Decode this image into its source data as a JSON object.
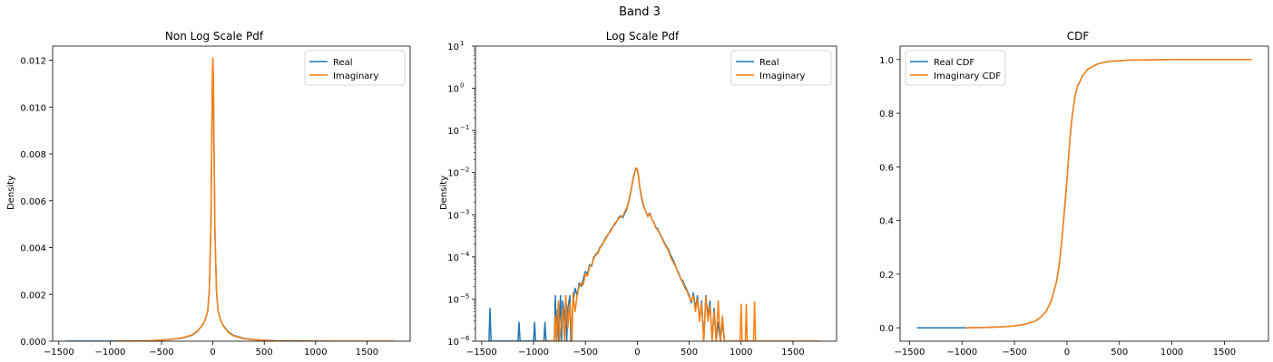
{
  "figure": {
    "suptitle": "Band 3"
  },
  "colors": {
    "real": "#1f77b4",
    "imaginary": "#ff7f0e"
  },
  "chart_data": [
    {
      "type": "line",
      "title": "Non Log Scale Pdf",
      "xlabel": "",
      "ylabel": "Density",
      "xlim": [
        -1560,
        1920
      ],
      "ylim": [
        0,
        0.0126
      ],
      "yscale": "linear",
      "xticks": [
        -1500,
        -1000,
        -500,
        0,
        500,
        1000,
        1500
      ],
      "yticks": [
        0.0,
        0.002,
        0.004,
        0.006,
        0.008,
        0.01,
        0.012
      ],
      "yticklabels": [
        "0.000",
        "0.002",
        "0.004",
        "0.006",
        "0.008",
        "0.010",
        "0.012"
      ],
      "grid": false,
      "legend": {
        "position": "upper right",
        "entries": [
          "Real",
          "Imaginary"
        ]
      },
      "series": [
        {
          "name": "Real",
          "color": "#1f77b4",
          "x": [
            -1430,
            -1000,
            -600,
            -400,
            -300,
            -200,
            -150,
            -100,
            -75,
            -50,
            -35,
            -20,
            -10,
            -5,
            0,
            5,
            10,
            20,
            35,
            50,
            75,
            100,
            150,
            200,
            300,
            400,
            600,
            1000,
            1140
          ],
          "y": [
            0,
            0,
            2e-05,
            8e-05,
            0.00013,
            0.00026,
            0.00042,
            0.0007,
            0.0009,
            0.0013,
            0.0022,
            0.0048,
            0.0088,
            0.0112,
            0.0119,
            0.011,
            0.0085,
            0.0046,
            0.0021,
            0.0013,
            0.0009,
            0.00068,
            0.0004,
            0.00025,
            0.00012,
            7e-05,
            2e-05,
            0,
            0
          ]
        },
        {
          "name": "Imaginary",
          "color": "#ff7f0e",
          "x": [
            -960,
            -600,
            -400,
            -300,
            -200,
            -150,
            -100,
            -75,
            -50,
            -35,
            -20,
            -10,
            -5,
            0,
            5,
            10,
            20,
            35,
            50,
            75,
            100,
            150,
            200,
            300,
            400,
            600,
            1000,
            1400,
            1760
          ],
          "y": [
            0,
            2e-05,
            8e-05,
            0.00014,
            0.00028,
            0.00044,
            0.00068,
            0.0009,
            0.0013,
            0.0022,
            0.005,
            0.009,
            0.0115,
            0.0121,
            0.0112,
            0.0087,
            0.0047,
            0.0022,
            0.0013,
            0.0009,
            0.00066,
            0.00038,
            0.00023,
            0.00011,
            6e-05,
            1e-05,
            0,
            0,
            0
          ]
        }
      ]
    },
    {
      "type": "line",
      "title": "Log Scale Pdf",
      "xlabel": "",
      "ylabel": "Density",
      "xlim": [
        -1560,
        1920
      ],
      "ylim": [
        1e-06,
        10
      ],
      "yscale": "log",
      "xticks": [
        -1500,
        -1000,
        -500,
        0,
        500,
        1000,
        1500
      ],
      "yticks": [
        1e-06,
        1e-05,
        0.0001,
        0.001,
        0.01,
        0.1,
        1,
        10
      ],
      "yticklabels": [
        "10",
        "10",
        "10",
        "10",
        "10",
        "10",
        "10",
        "10"
      ],
      "yticksup": [
        "−6",
        "−5",
        "−4",
        "−3",
        "−2",
        "−1",
        "0",
        "1"
      ],
      "grid": false,
      "legend": {
        "position": "upper right",
        "entries": [
          "Real",
          "Imaginary"
        ]
      },
      "series": [
        {
          "name": "Real",
          "color": "#1f77b4",
          "x": [
            -1430,
            -1420,
            -1410,
            -1150,
            -1140,
            -1130,
            -1000,
            -990,
            -980,
            -900,
            -890,
            -880,
            -800,
            -790,
            -780,
            -770,
            -760,
            -740,
            -730,
            -720,
            -700,
            -690,
            -680,
            -670,
            -650,
            -640,
            -620,
            -600,
            -580,
            -560,
            -540,
            -520,
            -500,
            -480,
            -460,
            -440,
            -420,
            -400,
            -380,
            -360,
            -340,
            -320,
            -300,
            -280,
            -260,
            -240,
            -220,
            -200,
            -180,
            -160,
            -140,
            -120,
            -100,
            -80,
            -60,
            -40,
            -20,
            -10,
            0,
            10,
            20,
            40,
            60,
            80,
            100,
            120,
            140,
            160,
            180,
            200,
            220,
            240,
            260,
            280,
            300,
            320,
            340,
            360,
            380,
            400,
            420,
            440,
            460,
            480,
            500,
            520,
            540,
            560,
            580,
            600,
            620,
            640,
            660,
            680,
            700,
            720,
            740,
            760,
            780,
            800,
            820,
            840
          ],
          "y": [
            1e-06,
            6e-06,
            1e-06,
            1e-06,
            2.8e-06,
            1e-06,
            1e-06,
            2.8e-06,
            1e-06,
            1e-06,
            2.8e-06,
            1e-06,
            1e-06,
            1.2e-05,
            1e-06,
            5.5e-06,
            1e-06,
            1.2e-05,
            1e-06,
            9e-06,
            3e-06,
            1.2e-05,
            1e-06,
            6e-06,
            1.2e-05,
            1e-06,
            8e-06,
            1.8e-05,
            1.2e-05,
            2.4e-05,
            2e-05,
            3e-05,
            4.5e-05,
            4e-05,
            6.5e-05,
            6e-05,
            0.0001,
            0.00011,
            0.00013,
            0.00017,
            0.00019,
            0.00024,
            0.0003,
            0.00034,
            0.00042,
            0.0005,
            0.00058,
            0.00068,
            0.00085,
            0.00095,
            0.00085,
            0.0011,
            0.0014,
            0.0022,
            0.0038,
            0.007,
            0.011,
            0.0125,
            0.0115,
            0.0085,
            0.005,
            0.0025,
            0.0016,
            0.0012,
            0.00095,
            0.0011,
            0.0008,
            0.00065,
            0.0005,
            0.00045,
            0.00034,
            0.00028,
            0.00022,
            0.00018,
            0.00015,
            0.00011,
            9e-05,
            7e-05,
            5e-05,
            4e-05,
            3e-05,
            2.7e-05,
            2e-05,
            1.6e-05,
            1.2e-05,
            8e-06,
            1.4e-05,
            6e-06,
            1.2e-05,
            3e-06,
            9e-06,
            1e-06,
            1.2e-05,
            4e-06,
            9e-06,
            1e-06,
            6e-06,
            1e-06,
            2.8e-06,
            1e-06,
            2.8e-06,
            1e-06
          ]
        },
        {
          "name": "Imaginary",
          "color": "#ff7f0e",
          "x": [
            -960,
            -800,
            -790,
            -780,
            -760,
            -750,
            -720,
            -700,
            -690,
            -670,
            -650,
            -630,
            -620,
            -600,
            -580,
            -560,
            -540,
            -520,
            -500,
            -480,
            -460,
            -440,
            -420,
            -400,
            -380,
            -360,
            -340,
            -320,
            -300,
            -280,
            -260,
            -240,
            -220,
            -200,
            -180,
            -160,
            -140,
            -120,
            -100,
            -80,
            -60,
            -40,
            -20,
            -10,
            0,
            10,
            20,
            40,
            60,
            80,
            100,
            120,
            140,
            160,
            180,
            200,
            220,
            240,
            260,
            280,
            300,
            320,
            340,
            360,
            380,
            400,
            420,
            440,
            460,
            480,
            500,
            520,
            540,
            560,
            580,
            600,
            620,
            640,
            660,
            680,
            700,
            720,
            740,
            760,
            780,
            800,
            820,
            840,
            900,
            990,
            1000,
            1010,
            1040,
            1050,
            1060,
            1120,
            1130,
            1140,
            1760
          ],
          "y": [
            1e-06,
            1e-06,
            4e-06,
            1e-06,
            9e-06,
            1e-06,
            6e-06,
            1e-06,
            1.2e-05,
            2e-06,
            8e-06,
            1e-06,
            1.4e-05,
            5e-06,
            1.2e-05,
            2e-05,
            2.4e-05,
            2.2e-05,
            4e-05,
            3.5e-05,
            6e-05,
            6.5e-05,
            9e-05,
            0.00012,
            0.00012,
            0.00016,
            0.0002,
            0.00023,
            0.00028,
            0.00035,
            0.0004,
            0.00048,
            0.00062,
            0.0007,
            0.0008,
            0.0009,
            0.00092,
            0.0012,
            0.0015,
            0.0023,
            0.004,
            0.0075,
            0.0115,
            0.013,
            0.012,
            0.009,
            0.0052,
            0.0027,
            0.0017,
            0.0012,
            0.0009,
            0.00105,
            0.0008,
            0.00063,
            0.00048,
            0.00043,
            0.00033,
            0.00027,
            0.00021,
            0.00017,
            0.00014,
            0.0001,
            8e-05,
            6.5e-05,
            5e-05,
            3.8e-05,
            3e-05,
            2.4e-05,
            1.8e-05,
            1.5e-05,
            1.1e-05,
            9e-06,
            1.2e-05,
            5e-06,
            1e-05,
            3e-06,
            8e-06,
            1e-06,
            1.1e-05,
            3e-06,
            7e-06,
            1e-06,
            5e-06,
            1e-06,
            9e-06,
            1e-06,
            4e-06,
            1e-06,
            1e-06,
            1e-06,
            7.5e-06,
            1e-06,
            1e-06,
            7.5e-06,
            1e-06,
            1e-06,
            8.5e-06,
            1e-06,
            1e-06
          ]
        }
      ]
    },
    {
      "type": "line",
      "title": "CDF",
      "xlabel": "",
      "ylabel": "",
      "xlim": [
        -1590,
        1920
      ],
      "ylim": [
        -0.05,
        1.05
      ],
      "yscale": "linear",
      "xticks": [
        -1500,
        -1000,
        -500,
        0,
        500,
        1000,
        1500
      ],
      "yticks": [
        0.0,
        0.2,
        0.4,
        0.6,
        0.8,
        1.0
      ],
      "yticklabels": [
        "0.0",
        "0.2",
        "0.4",
        "0.6",
        "0.8",
        "1.0"
      ],
      "grid": false,
      "legend": {
        "position": "upper left",
        "entries": [
          "Real CDF",
          "Imaginary CDF"
        ]
      },
      "series": [
        {
          "name": "Real CDF",
          "color": "#1f77b4",
          "x": [
            -1430,
            -1000,
            -800,
            -600,
            -500,
            -400,
            -300,
            -250,
            -200,
            -150,
            -100,
            -75,
            -50,
            -30,
            -15,
            0,
            15,
            30,
            50,
            75,
            100,
            150,
            200,
            300,
            400,
            600,
            800,
            1000
          ],
          "y": [
            0,
            0,
            0.001,
            0.004,
            0.007,
            0.013,
            0.025,
            0.04,
            0.06,
            0.1,
            0.17,
            0.23,
            0.32,
            0.41,
            0.48,
            0.55,
            0.63,
            0.71,
            0.79,
            0.86,
            0.9,
            0.94,
            0.965,
            0.985,
            0.993,
            0.998,
            0.999,
            1.0
          ]
        },
        {
          "name": "Imaginary CDF",
          "color": "#ff7f0e",
          "x": [
            -960,
            -800,
            -600,
            -500,
            -400,
            -300,
            -250,
            -200,
            -150,
            -100,
            -75,
            -50,
            -30,
            -15,
            0,
            15,
            30,
            50,
            75,
            100,
            150,
            200,
            300,
            400,
            600,
            800,
            1000,
            1200,
            1760
          ],
          "y": [
            0,
            0.001,
            0.004,
            0.007,
            0.013,
            0.025,
            0.04,
            0.06,
            0.1,
            0.17,
            0.23,
            0.32,
            0.41,
            0.48,
            0.55,
            0.63,
            0.71,
            0.79,
            0.86,
            0.9,
            0.94,
            0.965,
            0.985,
            0.993,
            0.998,
            0.999,
            1.0,
            1.0,
            1.0
          ]
        }
      ]
    }
  ]
}
